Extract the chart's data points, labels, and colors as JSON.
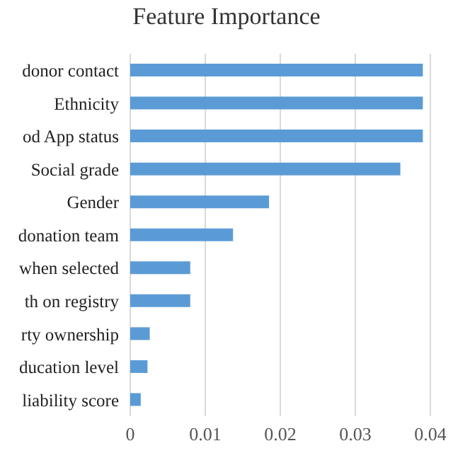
{
  "chart_data": {
    "type": "bar",
    "orientation": "horizontal",
    "title": "Feature Importance",
    "categories": [
      "donor contact",
      "Ethnicity",
      "od App status",
      "Social grade",
      "Gender",
      "donation team",
      "when selected",
      "th on registry",
      "rty ownership",
      "ducation level",
      "liability score"
    ],
    "values": [
      0.039,
      0.039,
      0.039,
      0.036,
      0.0185,
      0.0137,
      0.008,
      0.008,
      0.0026,
      0.0023,
      0.0014
    ],
    "color": "#5b9bd5",
    "xlim": [
      0,
      0.04
    ],
    "xticks": [
      0,
      0.01,
      0.02,
      0.03,
      0.04
    ],
    "grid": "x"
  }
}
